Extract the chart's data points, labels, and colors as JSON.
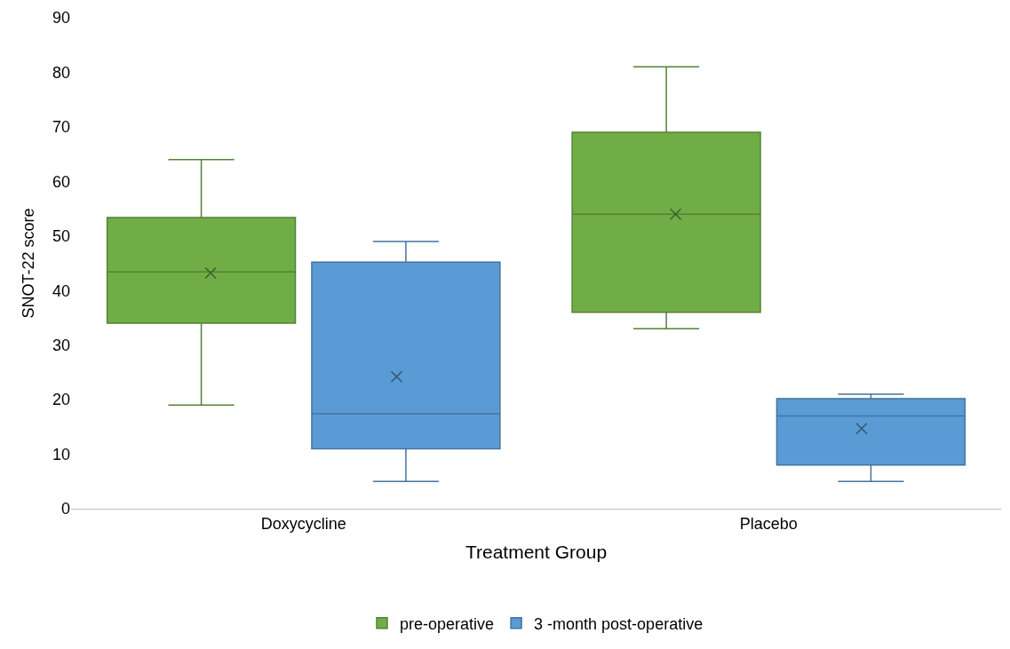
{
  "chart_data": {
    "type": "box",
    "xlabel": "Treatment Group",
    "ylabel": "SNOT-22 score",
    "categories": [
      "Doxycycline",
      "Placebo"
    ],
    "ylim": [
      0,
      90
    ],
    "yticks": [
      0,
      10,
      20,
      30,
      40,
      50,
      60,
      70,
      80,
      90
    ],
    "grid": false,
    "legend": "bottom",
    "series": [
      {
        "name": "pre-operative",
        "color": "#70ad47",
        "boxes": [
          {
            "low": 19,
            "q1": 34,
            "median": 43.4,
            "q3": 53.4,
            "high": 64,
            "mean": 43.2
          },
          {
            "low": 33,
            "q1": 36,
            "median": 54,
            "q3": 69,
            "high": 81,
            "mean": 54
          }
        ]
      },
      {
        "name": "3 -month post-operative",
        "color": "#5b9bd5",
        "boxes": [
          {
            "low": 5,
            "q1": 11,
            "median": 17.4,
            "q3": 45.2,
            "high": 49,
            "mean": 24.2
          },
          {
            "low": 5,
            "q1": 8,
            "median": 17,
            "q3": 20.2,
            "high": 21,
            "mean": 14.7
          }
        ]
      }
    ]
  }
}
